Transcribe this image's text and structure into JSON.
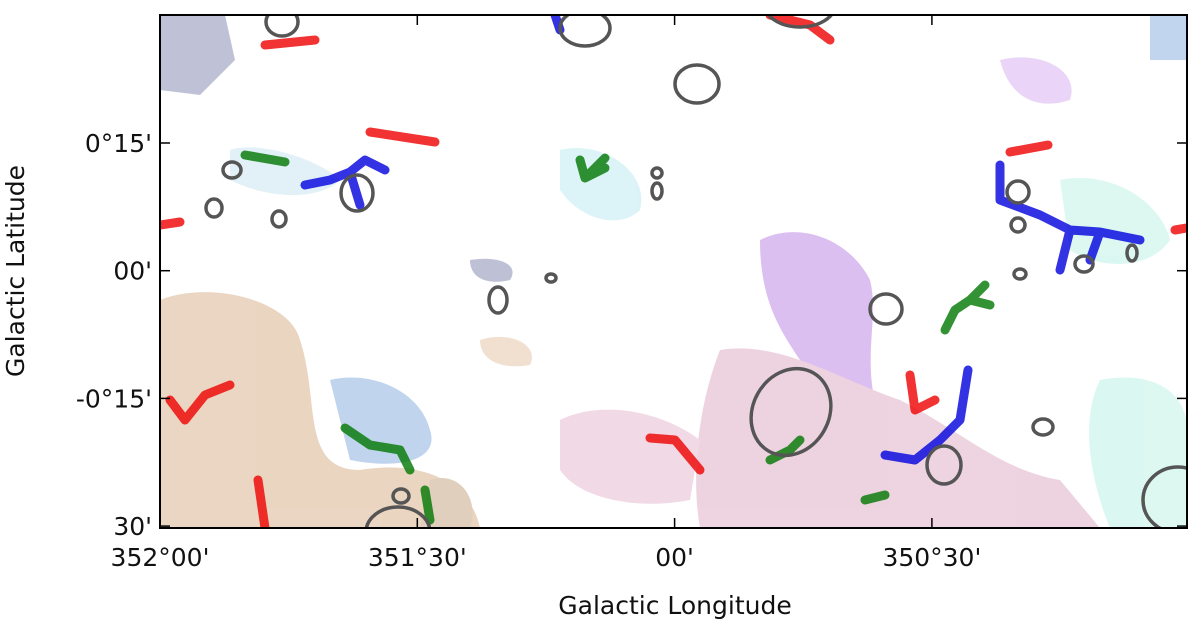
{
  "axes": {
    "x_label": "Galactic Longitude",
    "y_label": "Galactic Latitude",
    "xticks": [
      "352°00'",
      "351°30'",
      "00'",
      "350°30'"
    ],
    "yticks": [
      "0°15'",
      "00'",
      "-0°15'",
      "30'"
    ]
  }
}
